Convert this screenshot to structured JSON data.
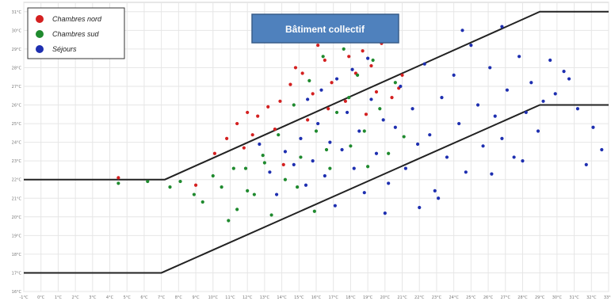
{
  "chart_data": {
    "type": "scatter",
    "title": "Bâtiment collectif",
    "xlim": [
      -1,
      33
    ],
    "ylim": [
      16,
      31.5
    ],
    "ytick_step": 1,
    "ytick_labels": [
      "16°C",
      "17°C",
      "18°C",
      "19°C",
      "20°C",
      "21°C",
      "22°C",
      "23°C",
      "24°C",
      "25°C",
      "26°C",
      "27°C",
      "28°C",
      "29°C",
      "30°C",
      "31°C"
    ],
    "xtick_labels": [
      "-1°C",
      "0°C",
      "1°C",
      "2°C",
      "3°C",
      "4°C",
      "5°C",
      "6°C",
      "7°C",
      "8°C",
      "9°C",
      "10°C",
      "11°C",
      "12°C",
      "13°C",
      "14°C",
      "15°C",
      "16°C",
      "17°C",
      "18°C",
      "19°C",
      "20°C",
      "21°C",
      "22°C",
      "23°C",
      "24°C",
      "25°C",
      "26°C",
      "27°C",
      "28°C",
      "29°C",
      "30°C",
      "31°C",
      "32°C",
      "33°C"
    ],
    "grid": true,
    "legend_position": "top-left",
    "series": [
      {
        "name": "Chambres nord",
        "color": "#d42020"
      },
      {
        "name": "Chambres sud",
        "color": "#1f8a2e"
      },
      {
        "name": "Séjours",
        "color": "#1e2fb0"
      }
    ],
    "points": {
      "Chambres nord": [
        [
          4.5,
          22.1
        ],
        [
          9.0,
          21.7
        ],
        [
          10.1,
          23.4
        ],
        [
          10.8,
          24.2
        ],
        [
          11.4,
          25.0
        ],
        [
          12.0,
          25.6
        ],
        [
          12.6,
          25.4
        ],
        [
          13.2,
          25.9
        ],
        [
          13.9,
          26.2
        ],
        [
          14.5,
          27.1
        ],
        [
          14.8,
          28.0
        ],
        [
          15.2,
          27.7
        ],
        [
          15.8,
          26.6
        ],
        [
          16.1,
          29.2
        ],
        [
          16.5,
          28.4
        ],
        [
          16.9,
          27.2
        ],
        [
          17.4,
          29.4
        ],
        [
          17.9,
          28.6
        ],
        [
          18.3,
          27.7
        ],
        [
          18.7,
          28.9
        ],
        [
          19.2,
          28.1
        ],
        [
          19.8,
          29.3
        ],
        [
          20.4,
          26.4
        ],
        [
          21.0,
          27.6
        ],
        [
          12.3,
          24.4
        ],
        [
          13.6,
          24.7
        ],
        [
          15.5,
          25.2
        ],
        [
          17.7,
          26.2
        ],
        [
          19.5,
          26.7
        ],
        [
          14.1,
          22.8
        ],
        [
          11.8,
          23.7
        ],
        [
          16.7,
          25.8
        ],
        [
          18.9,
          25.5
        ],
        [
          20.8,
          26.9
        ]
      ],
      "Chambres sud": [
        [
          4.5,
          21.8
        ],
        [
          6.2,
          21.9
        ],
        [
          7.5,
          21.6
        ],
        [
          8.1,
          21.9
        ],
        [
          8.9,
          21.2
        ],
        [
          9.4,
          20.8
        ],
        [
          10.0,
          22.2
        ],
        [
          10.5,
          21.6
        ],
        [
          10.9,
          19.8
        ],
        [
          11.4,
          20.4
        ],
        [
          11.9,
          22.6
        ],
        [
          12.4,
          21.2
        ],
        [
          12.9,
          23.3
        ],
        [
          13.4,
          20.1
        ],
        [
          13.8,
          24.4
        ],
        [
          14.2,
          22.0
        ],
        [
          14.7,
          26.0
        ],
        [
          15.1,
          23.2
        ],
        [
          15.6,
          27.3
        ],
        [
          16.0,
          24.6
        ],
        [
          16.4,
          28.6
        ],
        [
          16.8,
          22.6
        ],
        [
          17.2,
          25.6
        ],
        [
          17.6,
          29.0
        ],
        [
          18.0,
          23.8
        ],
        [
          18.4,
          27.6
        ],
        [
          18.8,
          24.6
        ],
        [
          19.3,
          28.4
        ],
        [
          19.7,
          25.8
        ],
        [
          20.2,
          23.4
        ],
        [
          20.6,
          27.2
        ],
        [
          21.1,
          24.3
        ],
        [
          11.2,
          22.6
        ],
        [
          12.0,
          21.4
        ],
        [
          13.0,
          22.9
        ],
        [
          14.9,
          21.6
        ],
        [
          15.9,
          20.3
        ],
        [
          16.6,
          23.6
        ],
        [
          17.9,
          26.4
        ],
        [
          19.0,
          22.7
        ]
      ],
      "Séjours": [
        [
          14.2,
          23.5
        ],
        [
          14.7,
          22.8
        ],
        [
          15.1,
          24.2
        ],
        [
          15.4,
          21.7
        ],
        [
          15.8,
          23.0
        ],
        [
          16.1,
          25.0
        ],
        [
          16.5,
          22.2
        ],
        [
          16.8,
          24.0
        ],
        [
          17.1,
          20.6
        ],
        [
          17.5,
          23.6
        ],
        [
          17.8,
          25.6
        ],
        [
          18.2,
          22.6
        ],
        [
          18.5,
          24.6
        ],
        [
          18.8,
          21.3
        ],
        [
          19.2,
          26.3
        ],
        [
          19.5,
          23.4
        ],
        [
          19.9,
          25.2
        ],
        [
          20.2,
          21.8
        ],
        [
          20.6,
          24.8
        ],
        [
          20.9,
          27.0
        ],
        [
          21.2,
          22.6
        ],
        [
          21.6,
          25.8
        ],
        [
          21.9,
          23.9
        ],
        [
          22.3,
          28.2
        ],
        [
          22.6,
          24.4
        ],
        [
          22.9,
          21.4
        ],
        [
          23.3,
          26.4
        ],
        [
          23.6,
          23.2
        ],
        [
          24.0,
          27.6
        ],
        [
          24.3,
          25.0
        ],
        [
          24.7,
          22.4
        ],
        [
          25.0,
          29.2
        ],
        [
          25.4,
          26.0
        ],
        [
          25.7,
          23.8
        ],
        [
          26.1,
          28.0
        ],
        [
          26.4,
          25.4
        ],
        [
          26.8,
          24.2
        ],
        [
          27.1,
          26.8
        ],
        [
          27.5,
          23.2
        ],
        [
          27.8,
          28.6
        ],
        [
          28.2,
          25.6
        ],
        [
          28.5,
          27.2
        ],
        [
          28.9,
          24.6
        ],
        [
          29.2,
          26.2
        ],
        [
          29.6,
          28.4
        ],
        [
          30.4,
          27.8
        ],
        [
          30.7,
          27.4
        ],
        [
          31.2,
          25.8
        ],
        [
          31.7,
          22.8
        ],
        [
          32.1,
          24.8
        ],
        [
          32.6,
          23.6
        ],
        [
          15.5,
          26.3
        ],
        [
          16.3,
          26.8
        ],
        [
          17.2,
          27.4
        ],
        [
          18.1,
          27.9
        ],
        [
          19.0,
          28.5
        ],
        [
          13.3,
          22.4
        ],
        [
          13.7,
          21.2
        ],
        [
          12.7,
          23.9
        ],
        [
          24.5,
          30.0
        ],
        [
          26.8,
          30.2
        ],
        [
          23.1,
          21.0
        ],
        [
          22.0,
          20.5
        ],
        [
          20.0,
          20.2
        ],
        [
          26.2,
          22.3
        ],
        [
          28.0,
          23.0
        ],
        [
          29.9,
          26.6
        ]
      ]
    },
    "lines": [
      {
        "name": "upper",
        "x": [
          -1,
          7.2,
          29,
          33
        ],
        "y": [
          22,
          22,
          31,
          31
        ]
      },
      {
        "name": "lower",
        "x": [
          -1,
          7.0,
          29,
          33
        ],
        "y": [
          17,
          17,
          26,
          26
        ]
      }
    ]
  }
}
